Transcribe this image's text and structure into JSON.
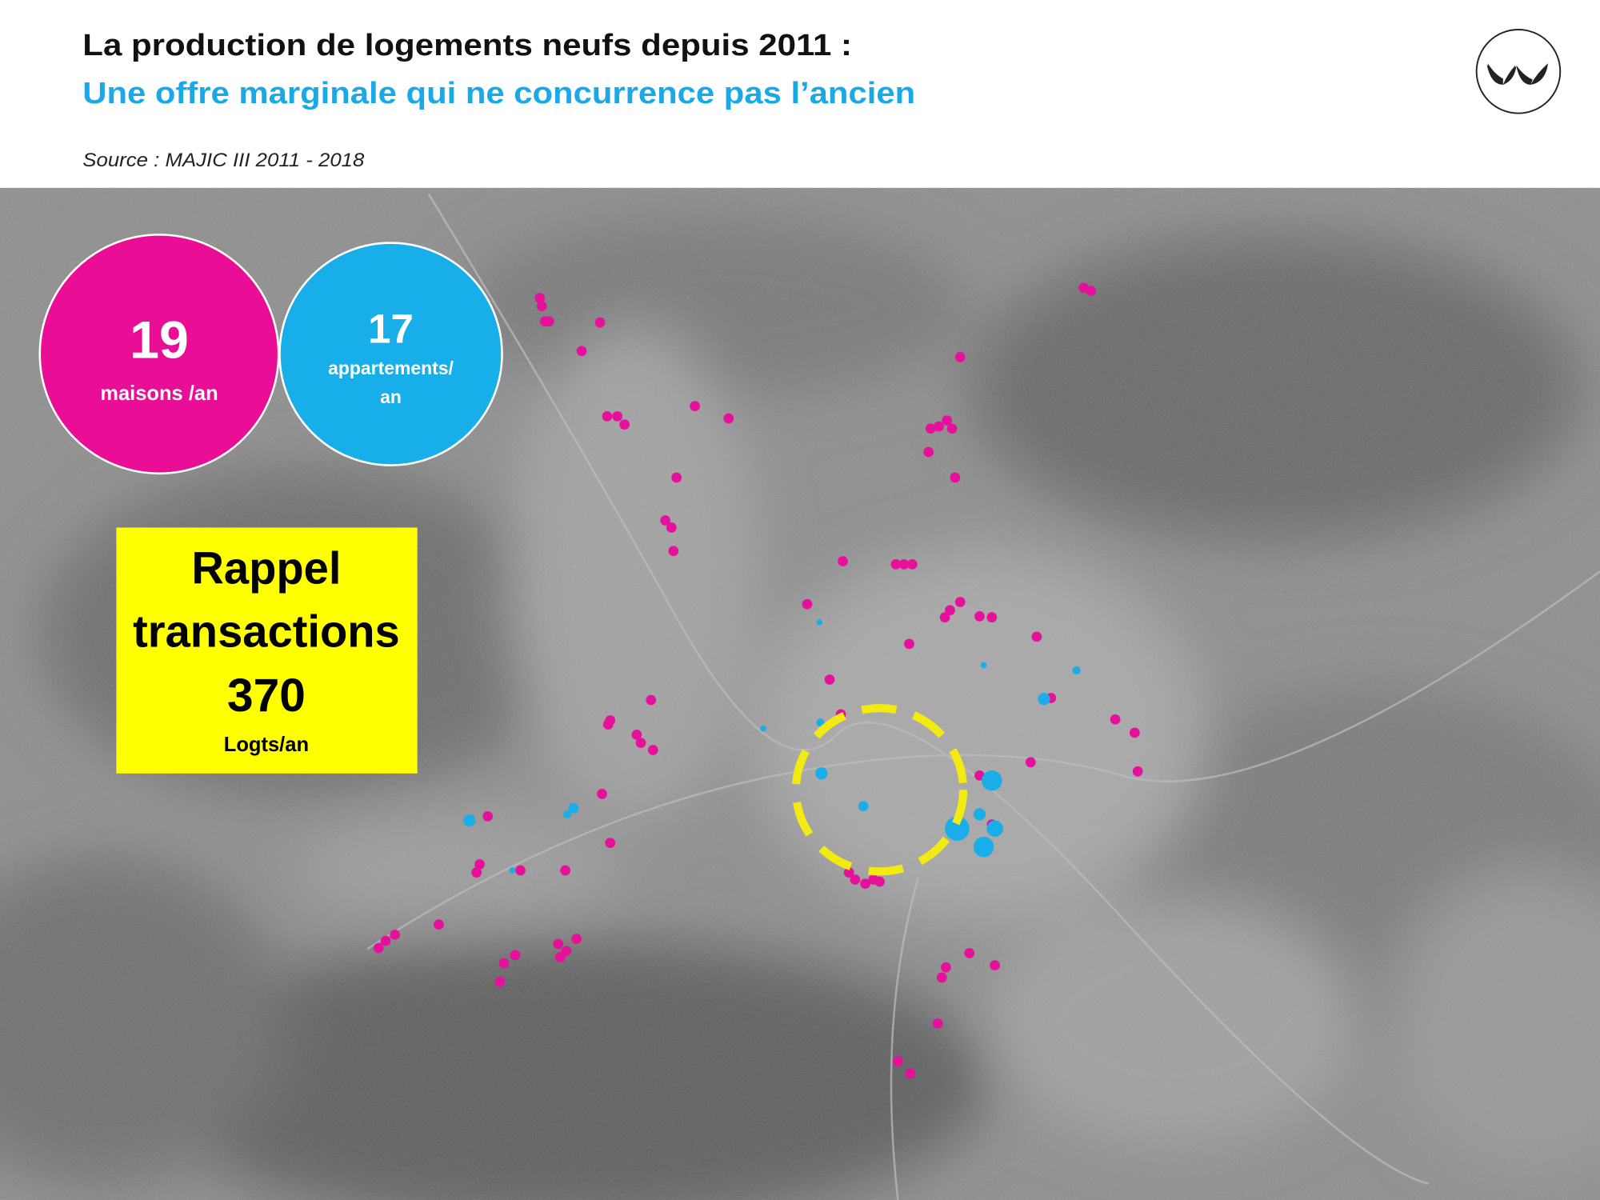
{
  "header": {
    "title": "La production de logements neufs depuis 2011 :",
    "subtitle": "Une offre marginale qui ne concurrence pas l’ancien",
    "source": "Source : MAJIC III 2011 - 2018"
  },
  "stats": [
    {
      "value": 19,
      "label_lines": [
        "maisons /an"
      ]
    },
    {
      "value": 17,
      "label_lines": [
        "appartements/",
        "an"
      ]
    }
  ],
  "callout": {
    "lines": [
      "Rappel",
      "transactions"
    ],
    "value": 370,
    "unit": "Logts/an"
  }
}
